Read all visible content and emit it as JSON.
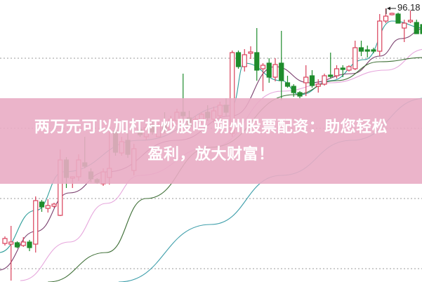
{
  "headline": {
    "line1": "两万元可以加杠杆炒股吗 朔州股票配资：助您轻松",
    "line2": "盈利，放大财富！"
  },
  "chart_data": {
    "type": "candlestick",
    "title": "",
    "xlabel": "",
    "ylabel": "",
    "grid": "horizontal dotted",
    "high_marker": "96.18",
    "colors": {
      "up": "#d9405a",
      "down": "#1f8c2c",
      "ma5": "#2f9e9a",
      "ma10": "#7a3f6e",
      "ma20": "#e6a6dc",
      "ma30": "#3d6e35",
      "ma60": "#3f9fab",
      "banner": "#e9acc4"
    },
    "candles": [
      [
        62.68,
        63.68,
        62.38,
        63.38
      ],
      [
        62.58,
        65.18,
        57.38,
        62.88
      ],
      [
        62.78,
        62.98,
        61.98,
        62.18
      ],
      [
        62.38,
        63.58,
        62.18,
        62.88
      ],
      [
        62.88,
        63.18,
        61.58,
        62.08
      ],
      [
        62.58,
        69.38,
        61.38,
        68.78
      ],
      [
        68.58,
        68.88,
        67.18,
        67.88
      ],
      [
        67.68,
        68.98,
        67.08,
        68.08
      ],
      [
        67.98,
        68.48,
        67.78,
        68.28
      ],
      [
        66.68,
        76.08,
        66.58,
        74.58
      ],
      [
        74.58,
        74.98,
        70.58,
        72.08
      ],
      [
        71.98,
        72.18,
        70.58,
        72.18
      ],
      [
        72.18,
        75.38,
        71.58,
        74.58
      ],
      [
        74.18,
        77.88,
        73.38,
        73.68
      ],
      [
        72.88,
        73.38,
        71.38,
        71.88
      ],
      [
        71.78,
        71.98,
        71.18,
        71.38
      ],
      [
        71.18,
        73.38,
        70.88,
        72.88
      ],
      [
        72.08,
        79.38,
        71.08,
        73.38
      ],
      [
        78.68,
        79.38,
        75.18,
        75.68
      ],
      [
        75.58,
        77.88,
        75.18,
        77.18
      ],
      [
        77.38,
        78.38,
        74.88,
        75.38
      ],
      [
        73.08,
        76.88,
        72.38,
        76.18
      ],
      [
        78.88,
        80.38,
        77.88,
        78.18
      ],
      [
        77.88,
        79.58,
        77.38,
        79.18
      ],
      [
        79.58,
        80.38,
        78.18,
        78.58
      ],
      [
        77.88,
        79.88,
        77.88,
        79.58
      ],
      [
        79.78,
        81.38,
        78.38,
        78.78
      ],
      [
        78.88,
        80.88,
        78.58,
        80.38
      ],
      [
        80.18,
        81.88,
        79.58,
        81.38
      ],
      [
        81.38,
        86.88,
        80.38,
        80.88
      ],
      [
        80.58,
        81.58,
        78.88,
        79.38
      ],
      [
        79.18,
        80.88,
        78.78,
        80.38
      ],
      [
        80.18,
        81.38,
        79.88,
        81.08
      ],
      [
        81.38,
        82.38,
        80.18,
        80.58
      ],
      [
        80.38,
        82.18,
        79.88,
        81.58
      ],
      [
        80.88,
        82.88,
        80.38,
        82.38
      ],
      [
        82.38,
        83.38,
        80.88,
        81.38
      ],
      [
        78.38,
        90.18,
        77.88,
        89.88
      ],
      [
        89.88,
        90.18,
        87.58,
        87.88
      ],
      [
        87.88,
        90.38,
        87.18,
        89.58
      ],
      [
        89.78,
        90.78,
        88.98,
        89.98
      ],
      [
        89.88,
        93.38,
        85.88,
        87.38
      ],
      [
        87.58,
        88.38,
        84.38,
        88.08
      ],
      [
        88.38,
        89.08,
        85.58,
        86.38
      ],
      [
        86.38,
        89.08,
        85.78,
        88.18
      ],
      [
        88.38,
        92.98,
        83.08,
        85.88
      ],
      [
        85.58,
        86.58,
        84.88,
        85.08
      ],
      [
        85.08,
        85.38,
        83.58,
        84.18
      ],
      [
        84.18,
        84.38,
        83.38,
        83.68
      ],
      [
        85.58,
        88.08,
        83.68,
        86.38
      ],
      [
        86.58,
        87.38,
        84.88,
        85.18
      ],
      [
        85.08,
        86.08,
        84.18,
        85.38
      ],
      [
        85.38,
        86.88,
        85.18,
        86.58
      ],
      [
        86.68,
        89.88,
        86.18,
        86.48
      ],
      [
        86.58,
        88.08,
        86.18,
        87.58
      ],
      [
        87.68,
        88.08,
        86.38,
        87.48
      ],
      [
        87.38,
        88.08,
        87.18,
        87.88
      ],
      [
        87.58,
        91.58,
        87.38,
        90.58
      ],
      [
        90.58,
        91.58,
        89.38,
        90.08
      ],
      [
        90.28,
        90.88,
        89.18,
        90.08
      ],
      [
        90.28,
        90.58,
        89.78,
        90.08
      ],
      [
        90.08,
        95.38,
        89.38,
        94.38
      ],
      [
        94.38,
        96.18,
        94.08,
        95.08
      ],
      [
        95.28,
        95.58,
        95.18,
        95.48
      ],
      [
        95.38,
        95.58,
        94.08,
        94.08
      ],
      [
        93.38,
        94.58,
        91.38,
        94.08
      ],
      [
        94.28,
        95.88,
        94.08,
        94.48
      ],
      [
        94.18,
        94.58,
        92.58,
        92.58
      ],
      [
        93.88,
        94.38,
        92.38,
        92.58
      ]
    ],
    "moving_averages": [
      {
        "key": "ma5",
        "points": [
          [
            -1,
            61.38
          ],
          [
            5,
            67.38
          ],
          [
            9.5,
            72.88
          ],
          [
            22,
            77.38
          ],
          [
            37,
            82.38
          ],
          [
            39,
            88.38
          ],
          [
            45,
            85.88
          ],
          [
            48,
            83.88
          ],
          [
            53,
            85.88
          ],
          [
            58.5,
            88.88
          ],
          [
            63,
            94.38
          ],
          [
            68.5,
            93.38
          ]
        ]
      },
      {
        "key": "ma10",
        "points": [
          [
            -1,
            58.88
          ],
          [
            5,
            64.38
          ],
          [
            10.5,
            69.88
          ],
          [
            16.5,
            72.88
          ],
          [
            28,
            77.38
          ],
          [
            37,
            80.88
          ],
          [
            44,
            87.88
          ],
          [
            49.5,
            85.58
          ],
          [
            56.5,
            86.88
          ],
          [
            61,
            89.38
          ],
          [
            64.5,
            91.88
          ],
          [
            68.5,
            93.38
          ]
        ]
      },
      {
        "key": "ma20",
        "points": [
          [
            2.5,
            57.38
          ],
          [
            10.5,
            62.88
          ],
          [
            16.5,
            68.38
          ],
          [
            22,
            72.38
          ],
          [
            33.5,
            76.38
          ],
          [
            45,
            84.38
          ],
          [
            53,
            85.58
          ],
          [
            62,
            87.38
          ],
          [
            68.5,
            90.38
          ]
        ]
      },
      {
        "key": "ma30",
        "points": [
          [
            7,
            57.18
          ],
          [
            16.5,
            61.38
          ],
          [
            23,
            69.08
          ],
          [
            33.5,
            76.38
          ],
          [
            47,
            83.88
          ],
          [
            54,
            85.88
          ],
          [
            61,
            88.58
          ],
          [
            68.5,
            89.18
          ]
        ]
      },
      {
        "key": "ma60",
        "points": [
          [
            18.5,
            57.18
          ],
          [
            33.5,
            65.38
          ],
          [
            45,
            72.38
          ],
          [
            56.5,
            77.38
          ],
          [
            68.5,
            83.38
          ]
        ]
      }
    ]
  }
}
